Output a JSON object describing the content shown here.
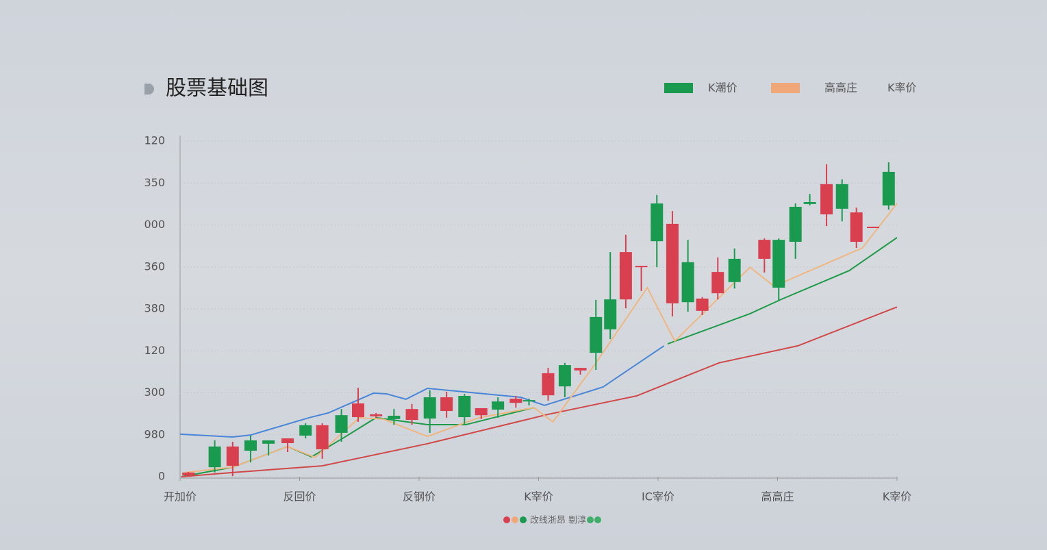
{
  "chart_data": {
    "type": "candlestick",
    "title": "股票基础图",
    "legend": [
      {
        "label": "K潮价",
        "color": "#1a9a4f"
      },
      {
        "color": "#f0a878"
      },
      {
        "label": "高高庄"
      },
      {
        "label": "K率价"
      }
    ],
    "caption": "改线浙昂 剔淳",
    "xlim": [
      0,
      60
    ],
    "xticks": [
      {
        "value": 0,
        "label": "开加价"
      },
      {
        "value": 10,
        "label": "反回价"
      },
      {
        "value": 20,
        "label": "反钢价"
      },
      {
        "value": 30,
        "label": "K宰价"
      },
      {
        "value": 40,
        "label": "IC宰价"
      },
      {
        "value": 50,
        "label": "高高庄"
      },
      {
        "value": 60,
        "label": "K宰价"
      }
    ],
    "ylim": [
      0,
      120
    ],
    "yticks": [
      0,
      {
        "value": 15,
        "label": "980"
      },
      {
        "value": 30,
        "label": "300"
      },
      {
        "value": 45,
        "label": "120"
      },
      {
        "value": 60,
        "label": "380"
      },
      {
        "value": 75,
        "label": "360"
      },
      {
        "value": 90,
        "label": "000"
      },
      {
        "value": 105,
        "label": "350"
      },
      120
    ],
    "grid": true,
    "up_color": "#d9404f",
    "down_color": "#1a9a4f",
    "candles": {
      "x": [
        0.7,
        2.9,
        4.4,
        5.9,
        7.4,
        9.0,
        10.5,
        11.9,
        13.5,
        14.9,
        16.4,
        17.9,
        19.4,
        20.9,
        22.3,
        23.8,
        25.2,
        26.6,
        28.1,
        29.2,
        30.8,
        32.2,
        33.5,
        34.8,
        36.0,
        37.3,
        38.6,
        39.9,
        41.2,
        42.5,
        43.7,
        45.0,
        46.4,
        48.9,
        50.1,
        51.5,
        52.7,
        54.1,
        55.4,
        56.6,
        58.0,
        59.3
      ],
      "open": [
        0.5,
        10.8,
        3.9,
        13.0,
        13.0,
        12.0,
        18.4,
        9.8,
        22.0,
        21.3,
        21.6,
        21.8,
        20.3,
        28.4,
        23.5,
        28.9,
        22.0,
        26.9,
        26.4,
        27.4,
        29.1,
        39.9,
        38.0,
        57.1,
        63.4,
        63.4,
        74.9,
        97.7,
        62.0,
        76.7,
        59.3,
        65.6,
        77.9,
        77.9,
        84.7,
        96.5,
        98.2,
        93.8,
        104.6,
        84.0,
        88.9,
        109.0
      ],
      "high": [
        1.7,
        13.0,
        12.5,
        14.7,
        13.0,
        13.7,
        19.1,
        19.1,
        24.2,
        31.8,
        22.8,
        24.2,
        26.0,
        30.9,
        30.4,
        29.6,
        24.5,
        28.4,
        28.9,
        27.9,
        38.9,
        40.7,
        38.9,
        63.2,
        80.3,
        86.5,
        75.4,
        100.7,
        95.0,
        84.7,
        64.2,
        78.4,
        81.6,
        85.2,
        85.2,
        97.7,
        101.1,
        111.7,
        106.3,
        96.2,
        89.4,
        112.4
      ],
      "low": [
        0,
        1.5,
        0.2,
        5.1,
        7.6,
        8.8,
        13.7,
        6.4,
        12.5,
        19.6,
        21.1,
        18.6,
        18.6,
        15.7,
        21.1,
        18.6,
        20.6,
        21.1,
        24.7,
        25.5,
        27.2,
        28.4,
        36.5,
        38.2,
        49.2,
        60.2,
        66.4,
        74.9,
        57.3,
        59.0,
        57.8,
        63.4,
        67.3,
        73.0,
        62.7,
        77.9,
        97.0,
        89.6,
        91.3,
        81.8,
        88.9,
        95.5
      ],
      "close": [
        1.5,
        3.4,
        10.8,
        9.3,
        11.8,
        13.7,
        14.7,
        18.4,
        15.7,
        26.2,
        22.3,
        20.6,
        24.2,
        20.8,
        28.4,
        21.3,
        24.5,
        24.0,
        27.9,
        26.9,
        37.0,
        32.3,
        38.9,
        44.3,
        52.7,
        80.3,
        75.4,
        84.2,
        90.4,
        62.4,
        63.7,
        73.2,
        69.6,
        84.7,
        67.6,
        84.0,
        97.5,
        104.6,
        95.8,
        94.5,
        89.4,
        97.0
      ]
    },
    "lines": [
      {
        "color": "#4a86d8",
        "x": [
          0,
          4.4,
          5.9,
          10.8,
          12.4,
          16.2,
          17.3,
          18.9,
          20.7,
          28.5,
          30.5,
          35.4,
          40.5
        ],
        "values": [
          15.2,
          14.2,
          14.9,
          21.1,
          22.8,
          29.9,
          29.6,
          27.7,
          31.6,
          28.4,
          25.5,
          32.1,
          46.8
        ]
      },
      {
        "color": "#1f9a48",
        "x": [
          0.1,
          4.4,
          9.0,
          11.0,
          13.6,
          16.4,
          20.7,
          23.9,
          29.6,
          35.0,
          40.8,
          47.7,
          50.3,
          56.0,
          60.0
        ],
        "values": [
          0,
          3.4,
          10.8,
          7.1,
          13.7,
          21.1,
          18.6,
          18.6,
          24.7,
          null,
          47.5,
          58.3,
          63.4,
          73.7,
          85.5
        ]
      },
      {
        "color": "#d04848",
        "x": [
          0.1,
          4.4,
          11.9,
          20.7,
          30.8,
          38.2,
          45.1,
          51.7,
          60.0
        ],
        "values": [
          0,
          1.5,
          3.9,
          11.8,
          22.3,
          28.9,
          40.7,
          46.8,
          60.7
        ]
      },
      {
        "color": "#f0b680",
        "x": [
          0.4,
          4.4,
          9.0,
          11.3,
          15.0,
          17.0,
          20.7,
          25.0,
          29.6,
          31.2,
          34.8,
          39.1,
          41.4,
          47.7,
          49.7,
          57.1,
          60.0
        ],
        "values": [
          1.5,
          3.4,
          10.8,
          6.9,
          21.1,
          20.6,
          14.4,
          21.1,
          24.7,
          19.6,
          40.7,
          67.6,
          48.5,
          74.9,
          68.1,
          81.8,
          97.7
        ]
      }
    ]
  }
}
